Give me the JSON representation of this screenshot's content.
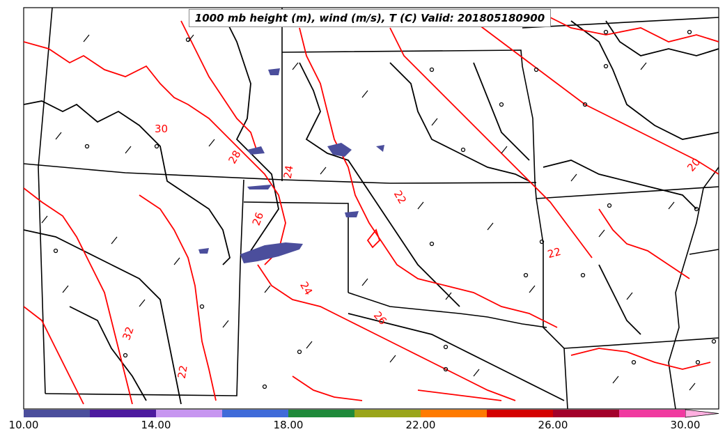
{
  "title": "1000 mb height (m), wind (m/s), T (C) Valid: 201805180900",
  "contour_labels": [
    "30",
    "28",
    "24",
    "22",
    "26",
    "24",
    "26",
    "32",
    "22",
    "22",
    "20"
  ],
  "colorbar": {
    "colors": [
      "#4b4e9c",
      "#4c1a9e",
      "#c796f0",
      "#3f6bd9",
      "#1f8a3a",
      "#9aa51a",
      "#ff7a00",
      "#ff6a00",
      "#d40000",
      "#a3002a",
      "#f03aa0"
    ],
    "extend_color": "#ffb0e0",
    "tick_labels": [
      "10.00",
      "14.00",
      "18.00",
      "22.00",
      "26.00",
      "30.00"
    ]
  },
  "colors": {
    "temperature_contour": "#ff0000",
    "height_contour": "#000000",
    "border": "#000000",
    "shading": "#4b4e9c"
  }
}
